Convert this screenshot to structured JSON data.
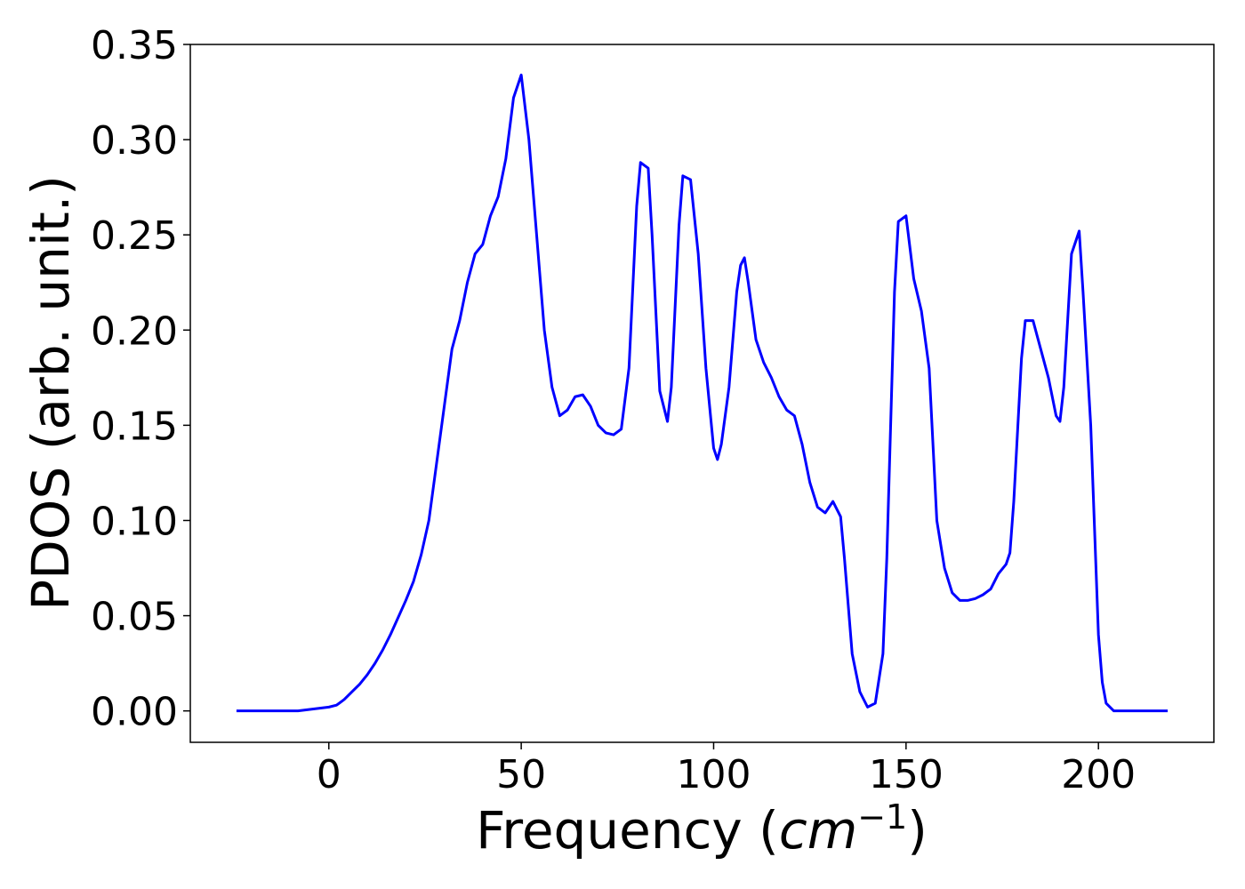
{
  "chart_data": {
    "type": "line",
    "title": "",
    "xlabel": {
      "prefix": "Frequency (",
      "italic": "cm",
      "superscript": "−1",
      "suffix": ")"
    },
    "ylabel": "PDOS (arb. unit.)",
    "xlim": [
      -36,
      230
    ],
    "ylim": [
      -0.0165,
      0.35
    ],
    "xticks": [
      {
        "value": 0,
        "label": "0"
      },
      {
        "value": 50,
        "label": "50"
      },
      {
        "value": 100,
        "label": "100"
      },
      {
        "value": 150,
        "label": "150"
      },
      {
        "value": 200,
        "label": "200"
      }
    ],
    "yticks": [
      {
        "value": 0.0,
        "label": "0.00"
      },
      {
        "value": 0.05,
        "label": "0.05"
      },
      {
        "value": 0.1,
        "label": "0.10"
      },
      {
        "value": 0.15,
        "label": "0.15"
      },
      {
        "value": 0.2,
        "label": "0.20"
      },
      {
        "value": 0.25,
        "label": "0.25"
      },
      {
        "value": 0.3,
        "label": "0.30"
      },
      {
        "value": 0.35,
        "label": "0.35"
      }
    ],
    "grid": false,
    "series": [
      {
        "color": "#0000ff",
        "points": [
          [
            -24,
            0.0
          ],
          [
            -8,
            0.0
          ],
          [
            -4,
            0.001
          ],
          [
            0,
            0.002
          ],
          [
            2,
            0.003
          ],
          [
            4,
            0.006
          ],
          [
            6,
            0.01
          ],
          [
            8,
            0.014
          ],
          [
            10,
            0.019
          ],
          [
            12,
            0.025
          ],
          [
            14,
            0.032
          ],
          [
            16,
            0.04
          ],
          [
            18,
            0.049
          ],
          [
            20,
            0.058
          ],
          [
            22,
            0.068
          ],
          [
            24,
            0.082
          ],
          [
            26,
            0.1
          ],
          [
            28,
            0.13
          ],
          [
            30,
            0.16
          ],
          [
            32,
            0.19
          ],
          [
            34,
            0.205
          ],
          [
            36,
            0.225
          ],
          [
            38,
            0.24
          ],
          [
            40,
            0.245
          ],
          [
            42,
            0.26
          ],
          [
            44,
            0.27
          ],
          [
            46,
            0.29
          ],
          [
            48,
            0.322
          ],
          [
            50,
            0.334
          ],
          [
            52,
            0.3
          ],
          [
            54,
            0.25
          ],
          [
            56,
            0.2
          ],
          [
            58,
            0.17
          ],
          [
            60,
            0.155
          ],
          [
            62,
            0.158
          ],
          [
            64,
            0.165
          ],
          [
            66,
            0.166
          ],
          [
            68,
            0.16
          ],
          [
            70,
            0.15
          ],
          [
            72,
            0.146
          ],
          [
            74,
            0.145
          ],
          [
            76,
            0.148
          ],
          [
            78,
            0.18
          ],
          [
            80,
            0.265
          ],
          [
            81,
            0.288
          ],
          [
            83,
            0.285
          ],
          [
            84,
            0.25
          ],
          [
            86,
            0.168
          ],
          [
            88,
            0.152
          ],
          [
            89,
            0.17
          ],
          [
            91,
            0.255
          ],
          [
            92,
            0.281
          ],
          [
            94,
            0.279
          ],
          [
            96,
            0.24
          ],
          [
            98,
            0.18
          ],
          [
            100,
            0.138
          ],
          [
            101,
            0.132
          ],
          [
            102,
            0.14
          ],
          [
            104,
            0.17
          ],
          [
            106,
            0.22
          ],
          [
            107,
            0.234
          ],
          [
            108,
            0.238
          ],
          [
            109,
            0.225
          ],
          [
            111,
            0.195
          ],
          [
            113,
            0.183
          ],
          [
            115,
            0.175
          ],
          [
            117,
            0.165
          ],
          [
            119,
            0.158
          ],
          [
            121,
            0.155
          ],
          [
            123,
            0.14
          ],
          [
            125,
            0.12
          ],
          [
            127,
            0.107
          ],
          [
            129,
            0.104
          ],
          [
            131,
            0.11
          ],
          [
            133,
            0.102
          ],
          [
            134,
            0.08
          ],
          [
            136,
            0.03
          ],
          [
            138,
            0.01
          ],
          [
            140,
            0.002
          ],
          [
            142,
            0.004
          ],
          [
            144,
            0.03
          ],
          [
            145,
            0.08
          ],
          [
            147,
            0.22
          ],
          [
            148,
            0.257
          ],
          [
            150,
            0.26
          ],
          [
            152,
            0.227
          ],
          [
            154,
            0.21
          ],
          [
            156,
            0.18
          ],
          [
            158,
            0.1
          ],
          [
            160,
            0.075
          ],
          [
            162,
            0.062
          ],
          [
            164,
            0.058
          ],
          [
            166,
            0.058
          ],
          [
            168,
            0.059
          ],
          [
            170,
            0.061
          ],
          [
            172,
            0.064
          ],
          [
            174,
            0.072
          ],
          [
            176,
            0.077
          ],
          [
            177,
            0.083
          ],
          [
            178,
            0.11
          ],
          [
            180,
            0.185
          ],
          [
            181,
            0.205
          ],
          [
            183,
            0.205
          ],
          [
            185,
            0.19
          ],
          [
            187,
            0.175
          ],
          [
            189,
            0.155
          ],
          [
            190,
            0.152
          ],
          [
            191,
            0.17
          ],
          [
            193,
            0.24
          ],
          [
            195,
            0.252
          ],
          [
            196,
            0.22
          ],
          [
            198,
            0.15
          ],
          [
            200,
            0.04
          ],
          [
            201,
            0.015
          ],
          [
            202,
            0.004
          ],
          [
            204,
            0.0
          ],
          [
            218,
            0.0
          ]
        ]
      }
    ]
  }
}
